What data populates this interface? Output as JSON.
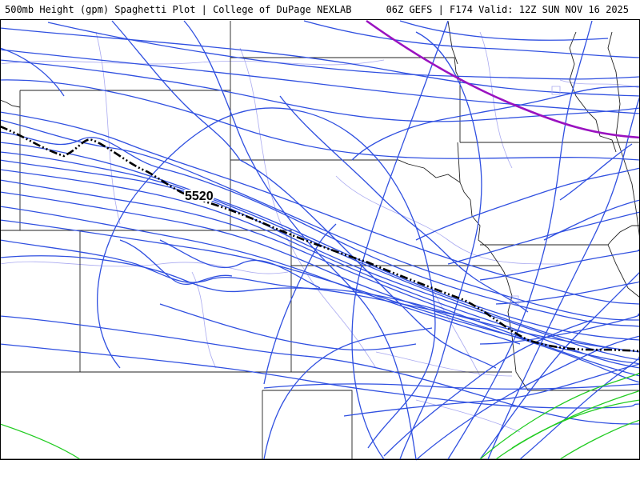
{
  "header": {
    "left_title": "500mb Height (gpm) Spaghetti Plot | College of DuPage NEXLAB",
    "right_title": "06Z GEFS | F174 Valid: 12Z SUN NOV 16 2025"
  },
  "contour_label": "5520",
  "colors": {
    "member_lines": "#3050e0",
    "mean_line": "#000000",
    "purple_contour": "#9a12c0",
    "green_contours": "#22cc22",
    "state_borders": "#222222",
    "county_roads": "#a9a9f0"
  }
}
